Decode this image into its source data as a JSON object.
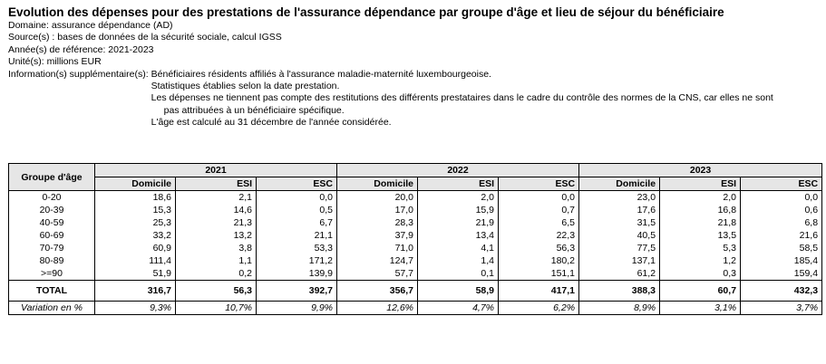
{
  "title": "Evolution des dépenses pour des prestations de l'assurance dépendance par groupe d'âge et lieu de séjour du bénéficiaire",
  "meta": {
    "domaine": "Domaine: assurance dépendance (AD)",
    "sources": "Source(s) : bases de données de la sécurité sociale, calcul IGSS",
    "annees": "Année(s) de référence: 2021-2023",
    "unites": "Unité(s): millions EUR",
    "info_label": "Information(s) supplémentaire(s):",
    "info_lines": [
      "Bénéficiaires résidents affiliés à l'assurance maladie-maternité luxembourgeoise.",
      "Statistiques établies selon la date prestation.",
      "Les dépenses ne tiennent pas compte des restitutions des différents prestataires dans le cadre du contrôle des normes de la CNS, car elles ne sont",
      "pas attribuées à un bénéficiaire spécifique.",
      "L'âge est calculé au 31 décembre de l'année considérée."
    ]
  },
  "table": {
    "group_header": "Groupe d'âge",
    "years": [
      "2021",
      "2022",
      "2023"
    ],
    "subheaders": [
      "Domicile",
      "ESI",
      "ESC"
    ],
    "rows": [
      {
        "label": "0-20",
        "values": [
          "18,6",
          "2,1",
          "0,0",
          "20,0",
          "2,0",
          "0,0",
          "23,0",
          "2,0",
          "0,0"
        ]
      },
      {
        "label": "20-39",
        "values": [
          "15,3",
          "14,6",
          "0,5",
          "17,0",
          "15,9",
          "0,7",
          "17,6",
          "16,8",
          "0,6"
        ]
      },
      {
        "label": "40-59",
        "values": [
          "25,3",
          "21,3",
          "6,7",
          "28,3",
          "21,9",
          "6,5",
          "31,5",
          "21,8",
          "6,8"
        ]
      },
      {
        "label": "60-69",
        "values": [
          "33,2",
          "13,2",
          "21,1",
          "37,9",
          "13,4",
          "22,3",
          "40,5",
          "13,5",
          "21,6"
        ]
      },
      {
        "label": "70-79",
        "values": [
          "60,9",
          "3,8",
          "53,3",
          "71,0",
          "4,1",
          "56,3",
          "77,5",
          "5,3",
          "58,5"
        ]
      },
      {
        "label": "80-89",
        "values": [
          "111,4",
          "1,1",
          "171,2",
          "124,7",
          "1,4",
          "180,2",
          "137,1",
          "1,2",
          "185,4"
        ]
      },
      {
        "label": ">=90",
        "values": [
          "51,9",
          "0,2",
          "139,9",
          "57,7",
          "0,1",
          "151,1",
          "61,2",
          "0,3",
          "159,4"
        ]
      }
    ],
    "total": {
      "label": "TOTAL",
      "values": [
        "316,7",
        "56,3",
        "392,7",
        "356,7",
        "58,9",
        "417,1",
        "388,3",
        "60,7",
        "432,3"
      ]
    },
    "variation": {
      "label": "Variation en %",
      "values": [
        "9,3%",
        "10,7%",
        "9,9%",
        "12,6%",
        "4,7%",
        "6,2%",
        "8,9%",
        "3,1%",
        "3,7%"
      ]
    }
  }
}
